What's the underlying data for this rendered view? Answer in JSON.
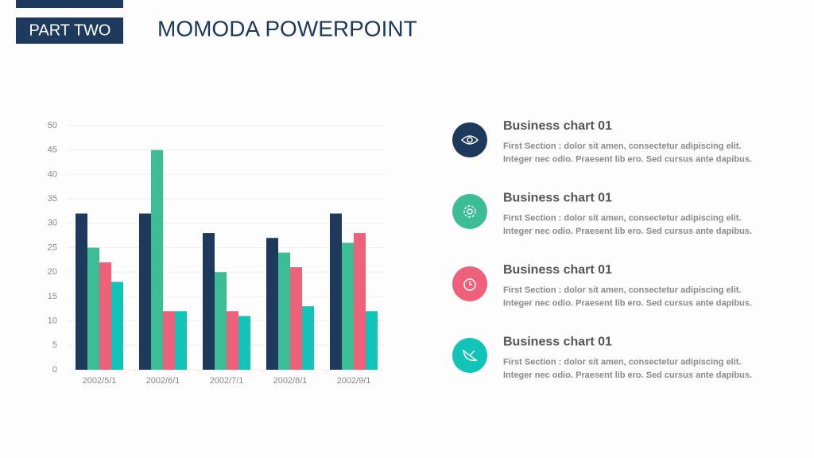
{
  "header": {
    "tag": "PART TWO",
    "title": "MOMODA POWERPOINT"
  },
  "chart_data": {
    "type": "bar",
    "categories": [
      "2002/5/1",
      "2002/6/1",
      "2002/7/1",
      "2002/8/1",
      "2002/9/1"
    ],
    "series": [
      {
        "color": "#1d3a5c",
        "values": [
          32,
          32,
          28,
          27,
          32
        ]
      },
      {
        "color": "#3dbd96",
        "values": [
          25,
          45,
          20,
          24,
          26
        ]
      },
      {
        "color": "#ef6079",
        "values": [
          22,
          12,
          12,
          21,
          28
        ]
      },
      {
        "color": "#12c4b8",
        "values": [
          18,
          12,
          11,
          13,
          12
        ]
      }
    ],
    "ylim": [
      0,
      50
    ],
    "yticks": [
      0,
      5,
      10,
      15,
      20,
      25,
      30,
      35,
      40,
      45,
      50
    ],
    "grid": true
  },
  "items": [
    {
      "title": "Business chart 01",
      "lines": [
        "First Section : dolor sit amen, consectetur adipiscing elit.",
        "Integer nec odio. Praesent lib ero. Sed cursus ante dapibus."
      ]
    },
    {
      "title": "Business chart 01",
      "lines": [
        "First Section : dolor sit amen, consectetur adipiscing elit.",
        "Integer nec odio. Praesent lib ero. Sed cursus ante dapibus."
      ]
    },
    {
      "title": "Business chart 01",
      "lines": [
        "First Section : dolor sit amen, consectetur adipiscing elit.",
        "Integer nec odio. Praesent lib ero. Sed cursus ante dapibus."
      ]
    },
    {
      "title": "Business chart 01",
      "lines": [
        "First Section : dolor sit amen, consectetur adipiscing elit.",
        "Integer nec odio. Praesent lib ero. Sed cursus ante dapibus."
      ]
    }
  ]
}
